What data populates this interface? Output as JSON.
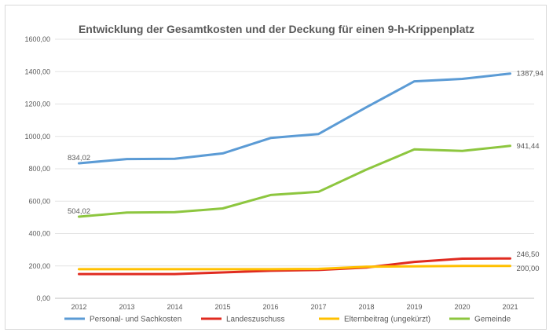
{
  "chart_data": {
    "type": "line",
    "title": "Entwicklung der Gesamtkosten und der Deckung für einen 9-h-Krippenplatz",
    "xlabel": "",
    "ylabel": "",
    "ylim": [
      0,
      1600
    ],
    "y_ticks": [
      "0,00",
      "200,00",
      "400,00",
      "600,00",
      "800,00",
      "1000,00",
      "1200,00",
      "1400,00",
      "1600,00"
    ],
    "categories": [
      "2012",
      "2013",
      "2014",
      "2015",
      "2016",
      "2017",
      "2018",
      "2019",
      "2020",
      "2021"
    ],
    "grid": true,
    "legend_position": "bottom",
    "series": [
      {
        "name": "Personal- und Sachkosten",
        "color": "#5b9bd5",
        "values": [
          834.02,
          860,
          862,
          895,
          990,
          1015,
          1180,
          1340,
          1355,
          1387.94
        ],
        "labels": [
          {
            "index": 0,
            "text": "834,02"
          },
          {
            "index": 9,
            "text": "1387,94"
          }
        ]
      },
      {
        "name": "Landeszuschuss",
        "color": "#e02b20",
        "values": [
          150,
          150,
          150,
          160,
          170,
          175,
          190,
          225,
          245,
          246.5
        ],
        "labels": [
          {
            "index": 9,
            "text": "246,50"
          }
        ]
      },
      {
        "name": "Elternbeitrag (ungekürzt)",
        "color": "#ffc000",
        "values": [
          180,
          180,
          180,
          180,
          180,
          182,
          195,
          198,
          200,
          200
        ],
        "labels": [
          {
            "index": 9,
            "text": "200,00"
          }
        ]
      },
      {
        "name": "Gemeinde",
        "color": "#8dc63f",
        "values": [
          504.02,
          530,
          532,
          555,
          638,
          658,
          795,
          920,
          910,
          941.44
        ],
        "labels": [
          {
            "index": 0,
            "text": "504,02"
          },
          {
            "index": 9,
            "text": "941,44"
          }
        ]
      }
    ]
  }
}
